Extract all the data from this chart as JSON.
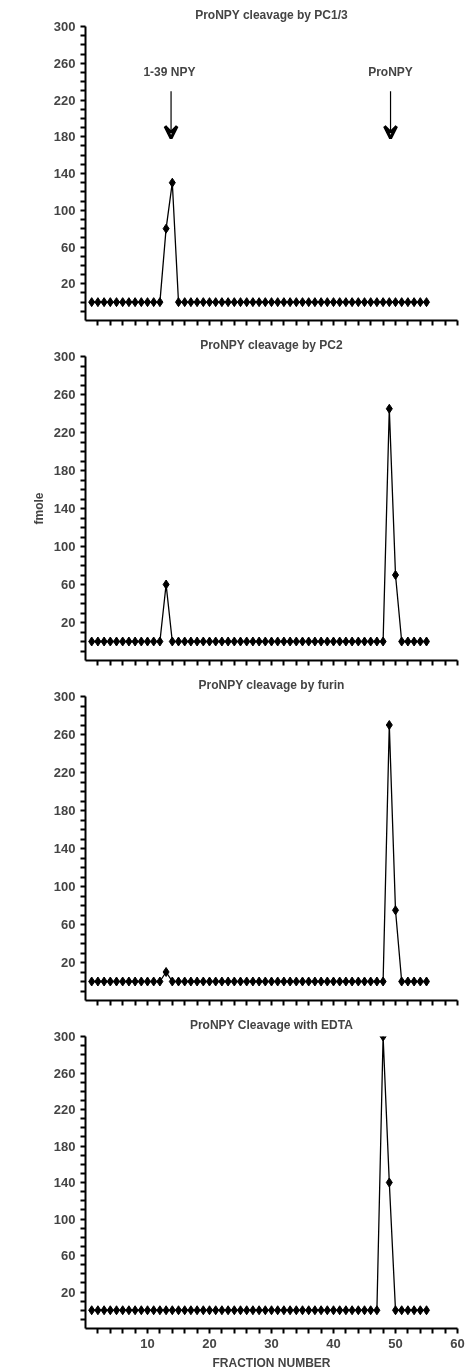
{
  "chart_data": [
    {
      "type": "line",
      "title": "ProNPY cleavage by PC1/3",
      "marker": "diamond",
      "line_style": "solid",
      "grid": false,
      "tick_labels": "y",
      "xlim": [
        0,
        60
      ],
      "ylim": [
        -20,
        300
      ],
      "xticks": [
        {
          "value": 2,
          "label": null
        },
        {
          "value": 4,
          "label": null
        },
        {
          "value": 6,
          "label": null
        },
        {
          "value": 8,
          "label": null
        },
        10,
        {
          "value": 12,
          "label": null
        },
        {
          "value": 14,
          "label": null
        },
        {
          "value": 16,
          "label": null
        },
        {
          "value": 18,
          "label": null
        },
        20,
        {
          "value": 22,
          "label": null
        },
        {
          "value": 24,
          "label": null
        },
        {
          "value": 26,
          "label": null
        },
        {
          "value": 28,
          "label": null
        },
        30,
        {
          "value": 32,
          "label": null
        },
        {
          "value": 34,
          "label": null
        },
        {
          "value": 36,
          "label": null
        },
        {
          "value": 38,
          "label": null
        },
        40,
        {
          "value": 42,
          "label": null
        },
        {
          "value": 44,
          "label": null
        },
        {
          "value": 46,
          "label": null
        },
        {
          "value": 48,
          "label": null
        },
        50,
        {
          "value": 52,
          "label": null
        },
        {
          "value": 54,
          "label": null
        },
        {
          "value": 56,
          "label": null
        },
        {
          "value": 58,
          "label": null
        },
        60
      ],
      "yticks": [
        {
          "value": -10,
          "label": null
        },
        {
          "value": 0,
          "label": null
        },
        {
          "value": 10,
          "label": null
        },
        20,
        {
          "value": 30,
          "label": null
        },
        {
          "value": 40,
          "label": null
        },
        {
          "value": 50,
          "label": null
        },
        60,
        {
          "value": 70,
          "label": null
        },
        {
          "value": 80,
          "label": null
        },
        {
          "value": 90,
          "label": null
        },
        100,
        {
          "value": 110,
          "label": null
        },
        {
          "value": 120,
          "label": null
        },
        {
          "value": 130,
          "label": null
        },
        140,
        {
          "value": 150,
          "label": null
        },
        {
          "value": 160,
          "label": null
        },
        {
          "value": 170,
          "label": null
        },
        180,
        {
          "value": 190,
          "label": null
        },
        {
          "value": 200,
          "label": null
        },
        {
          "value": 210,
          "label": null
        },
        220,
        {
          "value": 230,
          "label": null
        },
        {
          "value": 240,
          "label": null
        },
        {
          "value": 250,
          "label": null
        },
        260,
        {
          "value": 270,
          "label": null
        },
        {
          "value": 280,
          "label": null
        },
        {
          "value": 290,
          "label": null
        },
        300
      ],
      "annotations": [
        "1-39  NPY",
        "ProNPY"
      ],
      "series": [
        {
          "color": "#000000",
          "x": [
            1,
            2,
            3,
            4,
            5,
            6,
            7,
            8,
            9,
            10,
            11,
            12,
            13,
            14,
            15,
            16,
            17,
            18,
            19,
            20,
            21,
            22,
            23,
            24,
            25,
            26,
            27,
            28,
            29,
            30,
            31,
            32,
            33,
            34,
            35,
            36,
            37,
            38,
            39,
            40,
            41,
            42,
            43,
            44,
            45,
            46,
            47,
            48,
            49,
            50,
            51,
            52,
            53,
            54,
            55
          ],
          "values": [
            0,
            0,
            0,
            0,
            0,
            0,
            0,
            0,
            0,
            0,
            0,
            0,
            80,
            130,
            0,
            0,
            0,
            0,
            0,
            0,
            0,
            0,
            0,
            0,
            0,
            0,
            0,
            0,
            0,
            0,
            0,
            0,
            0,
            0,
            0,
            0,
            0,
            0,
            0,
            0,
            0,
            0,
            0,
            0,
            0,
            0,
            0,
            0,
            0,
            0,
            0,
            0,
            0,
            0,
            0
          ]
        }
      ]
    },
    {
      "type": "line",
      "title": "ProNPY cleavage by PC2",
      "ylabel": "fmole",
      "marker": "diamond",
      "line_style": "solid",
      "grid": false,
      "tick_labels": "y",
      "xlim": [
        0,
        60
      ],
      "ylim": [
        -20,
        300
      ],
      "xticks": [
        {
          "value": 2,
          "label": null
        },
        {
          "value": 4,
          "label": null
        },
        {
          "value": 6,
          "label": null
        },
        {
          "value": 8,
          "label": null
        },
        10,
        {
          "value": 12,
          "label": null
        },
        {
          "value": 14,
          "label": null
        },
        {
          "value": 16,
          "label": null
        },
        {
          "value": 18,
          "label": null
        },
        20,
        {
          "value": 22,
          "label": null
        },
        {
          "value": 24,
          "label": null
        },
        {
          "value": 26,
          "label": null
        },
        {
          "value": 28,
          "label": null
        },
        30,
        {
          "value": 32,
          "label": null
        },
        {
          "value": 34,
          "label": null
        },
        {
          "value": 36,
          "label": null
        },
        {
          "value": 38,
          "label": null
        },
        40,
        {
          "value": 42,
          "label": null
        },
        {
          "value": 44,
          "label": null
        },
        {
          "value": 46,
          "label": null
        },
        {
          "value": 48,
          "label": null
        },
        50,
        {
          "value": 52,
          "label": null
        },
        {
          "value": 54,
          "label": null
        },
        {
          "value": 56,
          "label": null
        },
        {
          "value": 58,
          "label": null
        },
        60
      ],
      "yticks": [
        {
          "value": -10,
          "label": null
        },
        {
          "value": 0,
          "label": null
        },
        {
          "value": 10,
          "label": null
        },
        20,
        {
          "value": 30,
          "label": null
        },
        {
          "value": 40,
          "label": null
        },
        {
          "value": 50,
          "label": null
        },
        60,
        {
          "value": 70,
          "label": null
        },
        {
          "value": 80,
          "label": null
        },
        {
          "value": 90,
          "label": null
        },
        100,
        {
          "value": 110,
          "label": null
        },
        {
          "value": 120,
          "label": null
        },
        {
          "value": 130,
          "label": null
        },
        140,
        {
          "value": 150,
          "label": null
        },
        {
          "value": 160,
          "label": null
        },
        {
          "value": 170,
          "label": null
        },
        180,
        {
          "value": 190,
          "label": null
        },
        {
          "value": 200,
          "label": null
        },
        {
          "value": 210,
          "label": null
        },
        220,
        {
          "value": 230,
          "label": null
        },
        {
          "value": 240,
          "label": null
        },
        {
          "value": 250,
          "label": null
        },
        260,
        {
          "value": 270,
          "label": null
        },
        {
          "value": 280,
          "label": null
        },
        {
          "value": 290,
          "label": null
        },
        300
      ],
      "series": [
        {
          "color": "#000000",
          "x": [
            1,
            2,
            3,
            4,
            5,
            6,
            7,
            8,
            9,
            10,
            11,
            12,
            13,
            14,
            15,
            16,
            17,
            18,
            19,
            20,
            21,
            22,
            23,
            24,
            25,
            26,
            27,
            28,
            29,
            30,
            31,
            32,
            33,
            34,
            35,
            36,
            37,
            38,
            39,
            40,
            41,
            42,
            43,
            44,
            45,
            46,
            47,
            48,
            49,
            50,
            51,
            52,
            53,
            54,
            55
          ],
          "values": [
            0,
            0,
            0,
            0,
            0,
            0,
            0,
            0,
            0,
            0,
            0,
            0,
            60,
            0,
            0,
            0,
            0,
            0,
            0,
            0,
            0,
            0,
            0,
            0,
            0,
            0,
            0,
            0,
            0,
            0,
            0,
            0,
            0,
            0,
            0,
            0,
            0,
            0,
            0,
            0,
            0,
            0,
            0,
            0,
            0,
            0,
            0,
            0,
            245,
            70,
            0,
            0,
            0,
            0,
            0
          ]
        }
      ]
    },
    {
      "type": "line",
      "title": "ProNPY cleavage by furin",
      "marker": "diamond",
      "line_style": "solid",
      "grid": false,
      "tick_labels": "y",
      "xlim": [
        0,
        60
      ],
      "ylim": [
        -20,
        300
      ],
      "xticks": [
        {
          "value": 2,
          "label": null
        },
        {
          "value": 4,
          "label": null
        },
        {
          "value": 6,
          "label": null
        },
        {
          "value": 8,
          "label": null
        },
        10,
        {
          "value": 12,
          "label": null
        },
        {
          "value": 14,
          "label": null
        },
        {
          "value": 16,
          "label": null
        },
        {
          "value": 18,
          "label": null
        },
        20,
        {
          "value": 22,
          "label": null
        },
        {
          "value": 24,
          "label": null
        },
        {
          "value": 26,
          "label": null
        },
        {
          "value": 28,
          "label": null
        },
        30,
        {
          "value": 32,
          "label": null
        },
        {
          "value": 34,
          "label": null
        },
        {
          "value": 36,
          "label": null
        },
        {
          "value": 38,
          "label": null
        },
        40,
        {
          "value": 42,
          "label": null
        },
        {
          "value": 44,
          "label": null
        },
        {
          "value": 46,
          "label": null
        },
        {
          "value": 48,
          "label": null
        },
        50,
        {
          "value": 52,
          "label": null
        },
        {
          "value": 54,
          "label": null
        },
        {
          "value": 56,
          "label": null
        },
        {
          "value": 58,
          "label": null
        },
        60
      ],
      "yticks": [
        {
          "value": -10,
          "label": null
        },
        {
          "value": 0,
          "label": null
        },
        {
          "value": 10,
          "label": null
        },
        20,
        {
          "value": 30,
          "label": null
        },
        {
          "value": 40,
          "label": null
        },
        {
          "value": 50,
          "label": null
        },
        60,
        {
          "value": 70,
          "label": null
        },
        {
          "value": 80,
          "label": null
        },
        {
          "value": 90,
          "label": null
        },
        100,
        {
          "value": 110,
          "label": null
        },
        {
          "value": 120,
          "label": null
        },
        {
          "value": 130,
          "label": null
        },
        140,
        {
          "value": 150,
          "label": null
        },
        {
          "value": 160,
          "label": null
        },
        {
          "value": 170,
          "label": null
        },
        180,
        {
          "value": 190,
          "label": null
        },
        {
          "value": 200,
          "label": null
        },
        {
          "value": 210,
          "label": null
        },
        220,
        {
          "value": 230,
          "label": null
        },
        {
          "value": 240,
          "label": null
        },
        {
          "value": 250,
          "label": null
        },
        260,
        {
          "value": 270,
          "label": null
        },
        {
          "value": 280,
          "label": null
        },
        {
          "value": 290,
          "label": null
        },
        300
      ],
      "series": [
        {
          "color": "#000000",
          "x": [
            1,
            2,
            3,
            4,
            5,
            6,
            7,
            8,
            9,
            10,
            11,
            12,
            13,
            14,
            15,
            16,
            17,
            18,
            19,
            20,
            21,
            22,
            23,
            24,
            25,
            26,
            27,
            28,
            29,
            30,
            31,
            32,
            33,
            34,
            35,
            36,
            37,
            38,
            39,
            40,
            41,
            42,
            43,
            44,
            45,
            46,
            47,
            48,
            49,
            50,
            51,
            52,
            53,
            54,
            55
          ],
          "values": [
            0,
            0,
            0,
            0,
            0,
            0,
            0,
            0,
            0,
            0,
            0,
            0,
            10,
            0,
            0,
            0,
            0,
            0,
            0,
            0,
            0,
            0,
            0,
            0,
            0,
            0,
            0,
            0,
            0,
            0,
            0,
            0,
            0,
            0,
            0,
            0,
            0,
            0,
            0,
            0,
            0,
            0,
            0,
            0,
            0,
            0,
            0,
            0,
            270,
            75,
            0,
            0,
            0,
            0,
            0
          ]
        }
      ]
    },
    {
      "type": "line",
      "title": "ProNPY Cleavage with EDTA",
      "xlabel": "FRACTION NUMBER",
      "marker": "diamond",
      "line_style": "solid",
      "grid": false,
      "xlim": [
        0,
        60
      ],
      "ylim": [
        -20,
        300
      ],
      "xticks": [
        {
          "value": 2,
          "label": null
        },
        {
          "value": 4,
          "label": null
        },
        {
          "value": 6,
          "label": null
        },
        {
          "value": 8,
          "label": null
        },
        10,
        {
          "value": 12,
          "label": null
        },
        {
          "value": 14,
          "label": null
        },
        {
          "value": 16,
          "label": null
        },
        {
          "value": 18,
          "label": null
        },
        20,
        {
          "value": 22,
          "label": null
        },
        {
          "value": 24,
          "label": null
        },
        {
          "value": 26,
          "label": null
        },
        {
          "value": 28,
          "label": null
        },
        30,
        {
          "value": 32,
          "label": null
        },
        {
          "value": 34,
          "label": null
        },
        {
          "value": 36,
          "label": null
        },
        {
          "value": 38,
          "label": null
        },
        40,
        {
          "value": 42,
          "label": null
        },
        {
          "value": 44,
          "label": null
        },
        {
          "value": 46,
          "label": null
        },
        {
          "value": 48,
          "label": null
        },
        50,
        {
          "value": 52,
          "label": null
        },
        {
          "value": 54,
          "label": null
        },
        {
          "value": 56,
          "label": null
        },
        {
          "value": 58,
          "label": null
        },
        60
      ],
      "yticks": [
        {
          "value": -10,
          "label": null
        },
        {
          "value": 0,
          "label": null
        },
        {
          "value": 10,
          "label": null
        },
        20,
        {
          "value": 30,
          "label": null
        },
        {
          "value": 40,
          "label": null
        },
        {
          "value": 50,
          "label": null
        },
        60,
        {
          "value": 70,
          "label": null
        },
        {
          "value": 80,
          "label": null
        },
        {
          "value": 90,
          "label": null
        },
        100,
        {
          "value": 110,
          "label": null
        },
        {
          "value": 120,
          "label": null
        },
        {
          "value": 130,
          "label": null
        },
        140,
        {
          "value": 150,
          "label": null
        },
        {
          "value": 160,
          "label": null
        },
        {
          "value": 170,
          "label": null
        },
        180,
        {
          "value": 190,
          "label": null
        },
        {
          "value": 200,
          "label": null
        },
        {
          "value": 210,
          "label": null
        },
        220,
        {
          "value": 230,
          "label": null
        },
        {
          "value": 240,
          "label": null
        },
        {
          "value": 250,
          "label": null
        },
        260,
        {
          "value": 270,
          "label": null
        },
        {
          "value": 280,
          "label": null
        },
        {
          "value": 290,
          "label": null
        },
        300
      ],
      "series": [
        {
          "color": "#000000",
          "x": [
            1,
            2,
            3,
            4,
            5,
            6,
            7,
            8,
            9,
            10,
            11,
            12,
            13,
            14,
            15,
            16,
            17,
            18,
            19,
            20,
            21,
            22,
            23,
            24,
            25,
            26,
            27,
            28,
            29,
            30,
            31,
            32,
            33,
            34,
            35,
            36,
            37,
            38,
            39,
            40,
            41,
            42,
            43,
            44,
            45,
            46,
            47,
            48,
            49,
            50,
            51,
            52,
            53,
            54,
            55
          ],
          "values": [
            0,
            0,
            0,
            0,
            0,
            0,
            0,
            0,
            0,
            0,
            0,
            0,
            0,
            0,
            0,
            0,
            0,
            0,
            0,
            0,
            0,
            0,
            0,
            0,
            0,
            0,
            0,
            0,
            0,
            0,
            0,
            0,
            0,
            0,
            0,
            0,
            0,
            0,
            0,
            0,
            0,
            0,
            0,
            0,
            0,
            0,
            0,
            300,
            140,
            0,
            0,
            0,
            0,
            0,
            0
          ]
        }
      ]
    }
  ]
}
